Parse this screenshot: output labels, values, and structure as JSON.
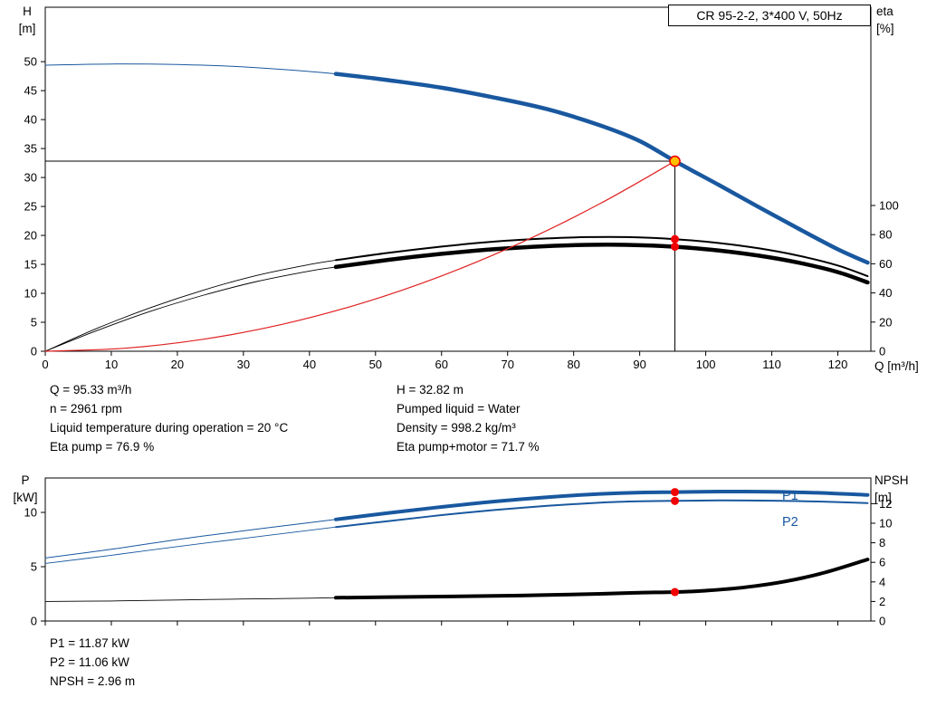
{
  "colors": {
    "blue": "#19589f",
    "red": "#e02020",
    "black": "#000000",
    "marker_red": "#f00000",
    "duty_fill": "#ffc000"
  },
  "axis_headers": {
    "top_left": [
      "H",
      "[m]"
    ],
    "top_right": [
      "eta",
      "[%]"
    ],
    "x_label": "Q [m³/h]",
    "bottom_left": [
      "P",
      "[kW]"
    ],
    "bottom_right": [
      "NPSH",
      "[m]"
    ]
  },
  "series_labels": {
    "p1": "P1",
    "p2": "P2"
  },
  "info": {
    "left": [
      "Q = 95.33 m³/h",
      "n = 2961 rpm",
      "Liquid temperature during operation = 20 °C",
      "Eta pump = 76.9 %"
    ],
    "right": [
      "H = 32.82 m",
      "Pumped liquid = Water",
      "Density = 998.2 kg/m³",
      "Eta pump+motor = 71.7 %"
    ]
  },
  "results": [
    "P1 = 11.87 kW",
    "P2 = 11.06 kW",
    "NPSH = 2.96 m"
  ],
  "chart_data": [
    {
      "id": "head-chart",
      "type": "line",
      "title": "CR 95-2-2, 3*400 V, 50Hz",
      "x": {
        "label": "Q [m³/h]",
        "min": 0,
        "max": 125,
        "ticks": [
          0,
          10,
          20,
          30,
          40,
          50,
          60,
          70,
          80,
          90,
          100,
          110,
          120
        ],
        "show_tick_labels": true
      },
      "y_left": {
        "label": "H [m]",
        "min": 0,
        "max": 59.4,
        "ticks": [
          0,
          5,
          10,
          15,
          20,
          25,
          30,
          35,
          40,
          45,
          50
        ]
      },
      "y_right": {
        "label": "eta [%]",
        "min": 0,
        "max": 236,
        "ticks": [
          0,
          20,
          40,
          60,
          80,
          100
        ]
      },
      "duty_point": {
        "q": 95.33,
        "h": 32.82
      },
      "markers": [
        {
          "axis": "right",
          "q": 95.33,
          "v": 76.9
        },
        {
          "axis": "right",
          "q": 95.33,
          "v": 71.7
        }
      ],
      "series": [
        {
          "name": "head-curve",
          "axis": "left",
          "color": "blue",
          "width": 4.5,
          "thin_width": 1,
          "thin_until": 44,
          "points": [
            [
              0,
              49.4
            ],
            [
              10,
              49.6
            ],
            [
              20,
              49.5
            ],
            [
              30,
              49.1
            ],
            [
              40,
              48.3
            ],
            [
              44,
              47.9
            ],
            [
              52,
              46.8
            ],
            [
              60,
              45.5
            ],
            [
              68,
              43.8
            ],
            [
              76,
              41.8
            ],
            [
              84,
              39.0
            ],
            [
              90,
              36.3
            ],
            [
              95.33,
              32.82
            ],
            [
              102,
              28.7
            ],
            [
              108,
              24.9
            ],
            [
              114,
              21.2
            ],
            [
              120,
              17.6
            ],
            [
              124.5,
              15.3
            ]
          ]
        },
        {
          "name": "eta-pump-curve",
          "axis": "right",
          "color": "black",
          "width": 2,
          "thin_width": 0.9,
          "thin_until": 44,
          "points": [
            [
              0,
              0
            ],
            [
              8,
              16
            ],
            [
              16,
              30
            ],
            [
              24,
              42
            ],
            [
              32,
              52
            ],
            [
              40,
              59.5
            ],
            [
              44,
              62.5
            ],
            [
              52,
              67.5
            ],
            [
              60,
              71.8
            ],
            [
              68,
              75.2
            ],
            [
              76,
              77.4
            ],
            [
              82,
              78.3
            ],
            [
              88,
              78.3
            ],
            [
              95.33,
              76.9
            ],
            [
              102,
              74.2
            ],
            [
              108,
              70.6
            ],
            [
              114,
              65.6
            ],
            [
              120,
              58.8
            ],
            [
              124.5,
              51.5
            ]
          ]
        },
        {
          "name": "eta-pump-motor-curve",
          "axis": "right",
          "color": "black",
          "width": 4.5,
          "thin_width": 0.9,
          "thin_until": 44,
          "points": [
            [
              0,
              0
            ],
            [
              8,
              14.5
            ],
            [
              16,
              27.5
            ],
            [
              24,
              38.5
            ],
            [
              32,
              47.8
            ],
            [
              40,
              55
            ],
            [
              44,
              57.8
            ],
            [
              52,
              62.7
            ],
            [
              60,
              66.8
            ],
            [
              68,
              70
            ],
            [
              76,
              72.1
            ],
            [
              82,
              73
            ],
            [
              88,
              73
            ],
            [
              95.33,
              71.7
            ],
            [
              102,
              69.1
            ],
            [
              108,
              65.6
            ],
            [
              114,
              60.8
            ],
            [
              120,
              54.3
            ],
            [
              124.5,
              47.2
            ]
          ]
        },
        {
          "name": "system-curve",
          "axis": "left",
          "color": "red",
          "width": 1.2,
          "points": [
            [
              0,
              0
            ],
            [
              12,
              0.52
            ],
            [
              24,
              2.08
            ],
            [
              36,
              4.68
            ],
            [
              48,
              8.32
            ],
            [
              60,
              13.0
            ],
            [
              72,
              18.73
            ],
            [
              84,
              25.49
            ],
            [
              95.33,
              32.82
            ]
          ]
        }
      ]
    },
    {
      "id": "power-chart",
      "type": "line",
      "x": {
        "label": "",
        "min": 0,
        "max": 125,
        "ticks": [
          0,
          10,
          20,
          30,
          40,
          50,
          60,
          70,
          80,
          90,
          100,
          110,
          120
        ],
        "show_tick_labels": false
      },
      "y_left": {
        "label": "P [kW]",
        "min": 0,
        "max": 13.17,
        "ticks": [
          0,
          5,
          10
        ]
      },
      "y_right": {
        "label": "NPSH [m]",
        "min": 0,
        "max": 14.63,
        "ticks": [
          0,
          2,
          4,
          6,
          8,
          10,
          12
        ]
      },
      "markers": [
        {
          "axis": "left",
          "q": 95.33,
          "v": 11.87
        },
        {
          "axis": "left",
          "q": 95.33,
          "v": 11.06
        },
        {
          "axis": "right",
          "q": 95.33,
          "v": 2.96
        }
      ],
      "series": [
        {
          "name": "p1-curve",
          "axis": "left",
          "color": "blue",
          "width": 4,
          "thin_width": 1,
          "thin_until": 44,
          "points": [
            [
              0,
              5.8
            ],
            [
              10,
              6.6
            ],
            [
              20,
              7.5
            ],
            [
              30,
              8.3
            ],
            [
              40,
              9.05
            ],
            [
              44,
              9.35
            ],
            [
              52,
              9.95
            ],
            [
              60,
              10.5
            ],
            [
              68,
              11.0
            ],
            [
              76,
              11.4
            ],
            [
              84,
              11.7
            ],
            [
              90,
              11.83
            ],
            [
              95.33,
              11.87
            ],
            [
              102,
              11.92
            ],
            [
              110,
              11.9
            ],
            [
              117,
              11.8
            ],
            [
              124.5,
              11.6
            ]
          ]
        },
        {
          "name": "p2-curve",
          "axis": "left",
          "color": "blue",
          "width": 2,
          "thin_width": 0.9,
          "thin_until": 44,
          "points": [
            [
              0,
              5.3
            ],
            [
              10,
              6.05
            ],
            [
              20,
              6.85
            ],
            [
              30,
              7.6
            ],
            [
              40,
              8.35
            ],
            [
              44,
              8.65
            ],
            [
              52,
              9.2
            ],
            [
              60,
              9.75
            ],
            [
              68,
              10.22
            ],
            [
              76,
              10.6
            ],
            [
              84,
              10.9
            ],
            [
              90,
              11.02
            ],
            [
              95.33,
              11.06
            ],
            [
              102,
              11.1
            ],
            [
              110,
              11.08
            ],
            [
              117,
              11.0
            ],
            [
              124.5,
              10.85
            ]
          ]
        },
        {
          "name": "npsh-curve",
          "axis": "right",
          "color": "black",
          "width": 4,
          "thin_width": 0.9,
          "thin_until": 44,
          "points": [
            [
              0,
              2.0
            ],
            [
              10,
              2.05
            ],
            [
              20,
              2.15
            ],
            [
              30,
              2.25
            ],
            [
              40,
              2.33
            ],
            [
              44,
              2.38
            ],
            [
              52,
              2.44
            ],
            [
              60,
              2.5
            ],
            [
              68,
              2.57
            ],
            [
              76,
              2.66
            ],
            [
              84,
              2.78
            ],
            [
              90,
              2.9
            ],
            [
              95.33,
              2.96
            ],
            [
              100,
              3.1
            ],
            [
              106,
              3.45
            ],
            [
              112,
              4.05
            ],
            [
              118,
              4.95
            ],
            [
              124.5,
              6.3
            ]
          ]
        }
      ]
    }
  ]
}
